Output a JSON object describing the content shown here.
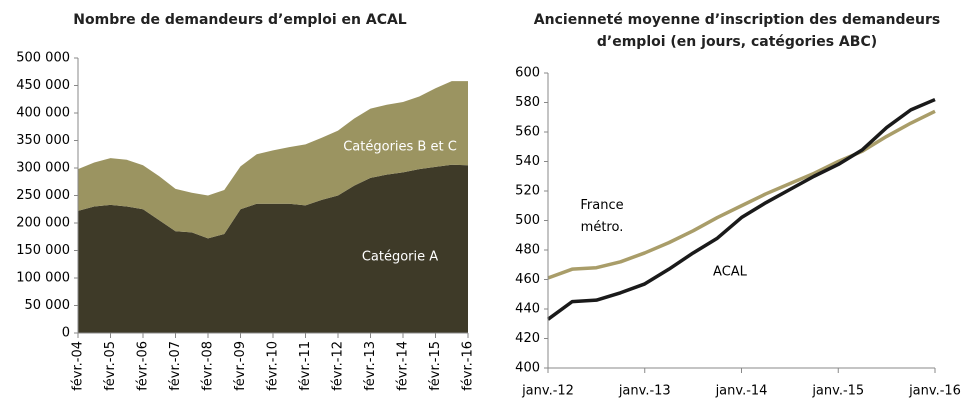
{
  "chart_data": [
    {
      "type": "area",
      "stacked": true,
      "title": "Nombre de demandeurs d’emploi en ACAL",
      "categories": [
        "févr.-04",
        null,
        "févr.-05",
        null,
        "févr.-06",
        null,
        "févr.-07",
        null,
        "févr.-08",
        null,
        "févr.-09",
        null,
        "févr.-10",
        null,
        "févr.-11",
        null,
        "févr.-12",
        null,
        "févr.-13",
        null,
        "févr.-14",
        null,
        "févr.-15",
        null,
        "févr.-16"
      ],
      "series": [
        {
          "name": "Catégorie A",
          "color": "#3e3a28",
          "values": [
            222000,
            230000,
            233000,
            230000,
            225000,
            205000,
            185000,
            183000,
            172000,
            180000,
            225000,
            235000,
            235000,
            235000,
            232000,
            242000,
            250000,
            268000,
            282000,
            288000,
            292000,
            298000,
            302000,
            306000,
            305000
          ]
        },
        {
          "name": "Catégories B et C",
          "color": "#9b9461",
          "values": [
            76000,
            80000,
            85000,
            85000,
            80000,
            80000,
            77000,
            72000,
            78000,
            80000,
            78000,
            90000,
            97000,
            103000,
            111000,
            113000,
            118000,
            122000,
            126000,
            127000,
            128000,
            132000,
            143000,
            152000,
            153000
          ]
        }
      ],
      "ylim": [
        0,
        500000
      ],
      "yticks": [
        0,
        {
          "value": 50000,
          "label": "50 000"
        },
        {
          "value": 100000,
          "label": "100 000"
        },
        {
          "value": 150000,
          "label": "150 000"
        },
        {
          "value": 200000,
          "label": "200 000"
        },
        {
          "value": 250000,
          "label": "250 000"
        },
        {
          "value": 300000,
          "label": "300 000"
        },
        {
          "value": 350000,
          "label": "350 000"
        },
        {
          "value": 400000,
          "label": "400 000"
        },
        {
          "value": 450000,
          "label": "450 000"
        },
        {
          "value": 500000,
          "label": "500 000"
        }
      ],
      "grid": false
    },
    {
      "type": "line",
      "title": "Ancienneté moyenne d’inscription des demandeurs d’emploi (en jours, catégories ABC)",
      "categories": [
        "janv.-12",
        null,
        null,
        null,
        "janv.-13",
        null,
        null,
        null,
        "janv.-14",
        null,
        null,
        null,
        "janv.-15",
        null,
        null,
        null,
        "janv.-16"
      ],
      "series": [
        {
          "name": "France métro.",
          "color": "#a99d69",
          "values": [
            461,
            467,
            468,
            472,
            478,
            485,
            493,
            502,
            510,
            518,
            525,
            532,
            540,
            547,
            557,
            566,
            574
          ]
        },
        {
          "name": "ACAL",
          "color": "#1a1a1a",
          "values": [
            433,
            445,
            446,
            451,
            457,
            467,
            478,
            488,
            502,
            512,
            521,
            530,
            538,
            548,
            563,
            575,
            582
          ]
        }
      ],
      "ylim": [
        400,
        600
      ],
      "yticks": [
        400,
        420,
        440,
        460,
        480,
        500,
        520,
        540,
        560,
        580,
        600
      ],
      "grid": false
    }
  ]
}
